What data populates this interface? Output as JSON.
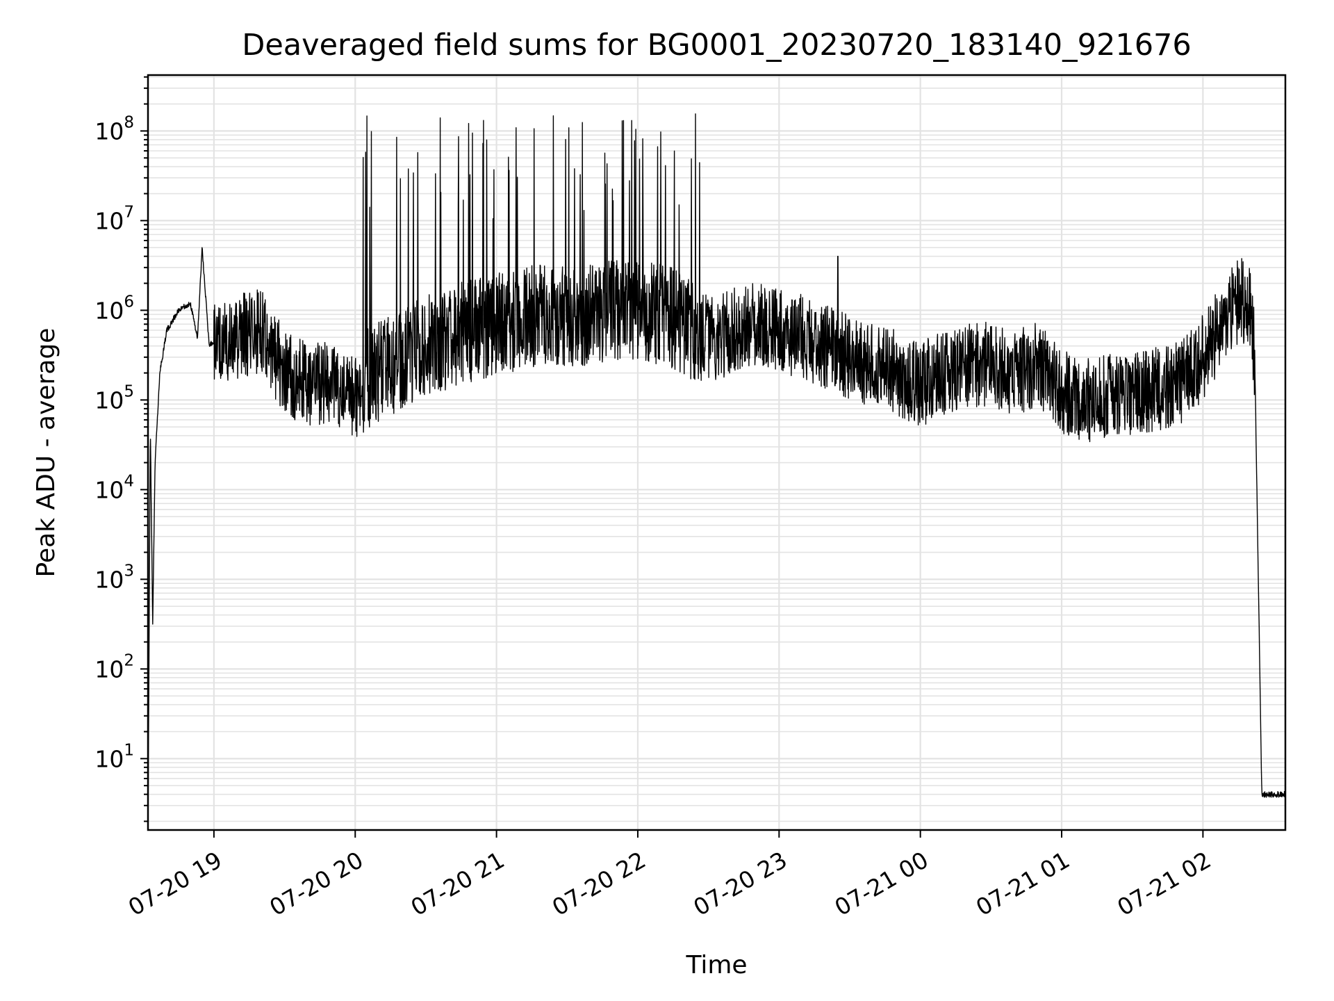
{
  "chart_data": {
    "type": "line",
    "title": "Deaveraged field sums for BG0001_20230720_183140_921676",
    "xlabel": "Time",
    "ylabel": "Peak ADU - average",
    "x_scale": "time",
    "y_scale": "log",
    "xlim": [
      "2023-07-20 18:32",
      "2023-07-21 02:35"
    ],
    "ylim": [
      1.6,
      420000000.0
    ],
    "grid": true,
    "legend": "none",
    "line_color": "#000000",
    "grid_color": "#e3e3e3",
    "x_ticks": [
      {
        "value": "2023-07-20 19:00",
        "label": "07-20 19"
      },
      {
        "value": "2023-07-20 20:00",
        "label": "07-20 20"
      },
      {
        "value": "2023-07-20 21:00",
        "label": "07-20 21"
      },
      {
        "value": "2023-07-20 22:00",
        "label": "07-20 22"
      },
      {
        "value": "2023-07-20 23:00",
        "label": "07-20 23"
      },
      {
        "value": "2023-07-21 00:00",
        "label": "07-21 00"
      },
      {
        "value": "2023-07-21 01:00",
        "label": "07-21 01"
      },
      {
        "value": "2023-07-21 02:00",
        "label": "07-21 02"
      }
    ],
    "y_ticks": [
      {
        "value": 10,
        "base": "10",
        "exp": "1"
      },
      {
        "value": 100,
        "base": "10",
        "exp": "2"
      },
      {
        "value": 1000,
        "base": "10",
        "exp": "3"
      },
      {
        "value": 10000,
        "base": "10",
        "exp": "4"
      },
      {
        "value": 100000,
        "base": "10",
        "exp": "5"
      },
      {
        "value": 1000000,
        "base": "10",
        "exp": "6"
      },
      {
        "value": 10000000,
        "base": "10",
        "exp": "7"
      },
      {
        "value": 100000000,
        "base": "10",
        "exp": "8"
      }
    ],
    "series": [
      {
        "x": [
          "2023-07-20 18:32",
          "2023-07-20 18:33",
          "2023-07-20 18:34",
          "2023-07-20 18:35",
          "2023-07-20 18:37",
          "2023-07-20 18:40",
          "2023-07-20 18:45",
          "2023-07-20 18:50",
          "2023-07-20 18:53",
          "2023-07-20 18:55",
          "2023-07-20 18:58",
          "2023-07-20 19:00",
          "2023-07-20 19:10",
          "2023-07-20 19:20",
          "2023-07-20 19:30",
          "2023-07-20 19:40",
          "2023-07-20 19:50",
          "2023-07-20 20:00",
          "2023-07-20 20:03",
          "2023-07-20 20:10",
          "2023-07-20 20:20",
          "2023-07-20 20:30",
          "2023-07-20 20:40",
          "2023-07-20 20:50",
          "2023-07-20 21:00",
          "2023-07-20 21:10",
          "2023-07-20 21:20",
          "2023-07-20 21:30",
          "2023-07-20 21:40",
          "2023-07-20 21:50",
          "2023-07-20 22:00",
          "2023-07-20 22:10",
          "2023-07-20 22:20",
          "2023-07-20 22:30",
          "2023-07-20 22:35",
          "2023-07-20 22:40",
          "2023-07-20 22:50",
          "2023-07-20 23:00",
          "2023-07-20 23:10",
          "2023-07-20 23:20",
          "2023-07-20 23:30",
          "2023-07-20 23:40",
          "2023-07-20 23:50",
          "2023-07-21 00:00",
          "2023-07-21 00:10",
          "2023-07-21 00:20",
          "2023-07-21 00:30",
          "2023-07-21 00:40",
          "2023-07-21 00:50",
          "2023-07-21 01:00",
          "2023-07-21 01:10",
          "2023-07-21 01:20",
          "2023-07-21 01:30",
          "2023-07-21 01:40",
          "2023-07-21 01:50",
          "2023-07-21 02:00",
          "2023-07-21 02:05",
          "2023-07-21 02:10",
          "2023-07-21 02:15",
          "2023-07-21 02:20",
          "2023-07-21 02:22",
          "2023-07-21 02:25",
          "2023-07-21 02:35"
        ],
        "y": [
          1.6,
          50000,
          300,
          20000,
          200000,
          600000,
          1000000,
          1200000,
          500000,
          5000000,
          400000,
          450000,
          500000,
          600000,
          200000,
          150000,
          150000,
          100000,
          150000,
          200000,
          300000,
          400000,
          500000,
          600000,
          700000,
          800000,
          900000,
          900000,
          900000,
          950000,
          1000000,
          900000,
          700000,
          500000,
          500000,
          600000,
          700000,
          600000,
          500000,
          400000,
          300000,
          250000,
          200000,
          150000,
          200000,
          250000,
          250000,
          200000,
          250000,
          120000,
          100000,
          110000,
          120000,
          130000,
          150000,
          300000,
          500000,
          800000,
          1300000,
          1200000,
          300000,
          4,
          4
        ]
      }
    ],
    "spikes": {
      "x_range": [
        "2023-07-20 20:03",
        "2023-07-20 22:27"
      ],
      "peak_values": [
        110000000.0,
        170000000.0,
        90000000.0,
        120000000.0,
        175000000.0,
        170000000.0,
        130000000.0,
        160000000.0,
        130000000.0,
        140000000.0,
        150000000.0,
        130000000.0,
        120000000.0,
        75000000.0,
        100000000.0,
        40000000.0
      ],
      "x_single": "2023-07-20 23:25",
      "y_single": 4000000
    }
  }
}
